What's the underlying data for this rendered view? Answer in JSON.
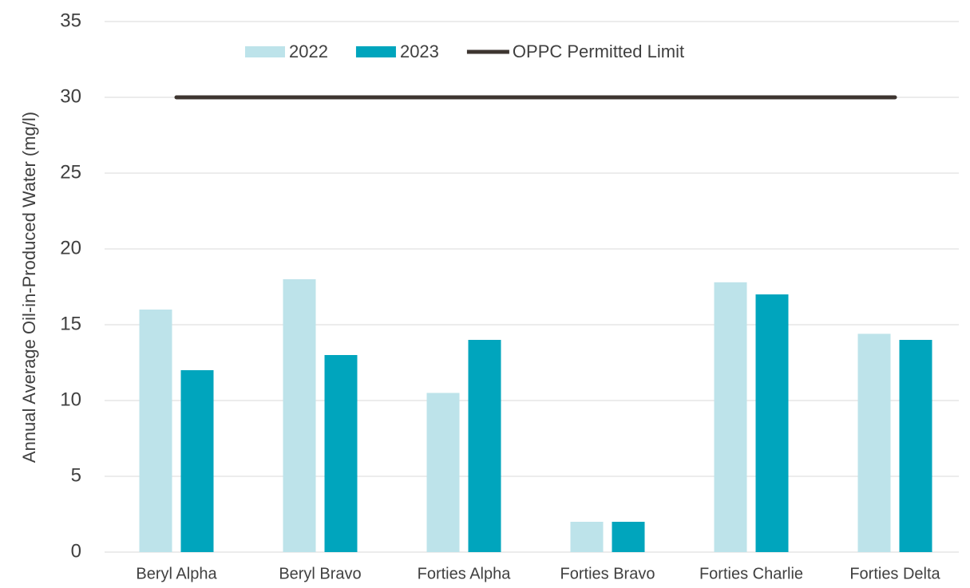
{
  "chart_data": {
    "type": "bar",
    "y_label": "Annual Average Oil-in-Produced Water (mg/l)",
    "categories": [
      "Beryl Alpha",
      "Beryl Bravo",
      "Forties Alpha",
      "Forties Bravo",
      "Forties Charlie",
      "Forties Delta"
    ],
    "series": [
      {
        "name": "2022",
        "color": "#bde3ea",
        "values": [
          16,
          18,
          10.5,
          2,
          17.8,
          14.4
        ]
      },
      {
        "name": "2023",
        "color": "#00a5bd",
        "values": [
          12,
          13,
          14,
          2,
          17,
          14
        ]
      },
      {
        "name": "OPPC Permitted Limit",
        "type": "line",
        "color": "#3d3530",
        "values": [
          30,
          30,
          30,
          30,
          30,
          30
        ]
      }
    ],
    "ylim": [
      0,
      35
    ],
    "yticks": [
      0,
      5,
      10,
      15,
      20,
      25,
      30,
      35
    ],
    "grid": true,
    "legend": "top"
  }
}
